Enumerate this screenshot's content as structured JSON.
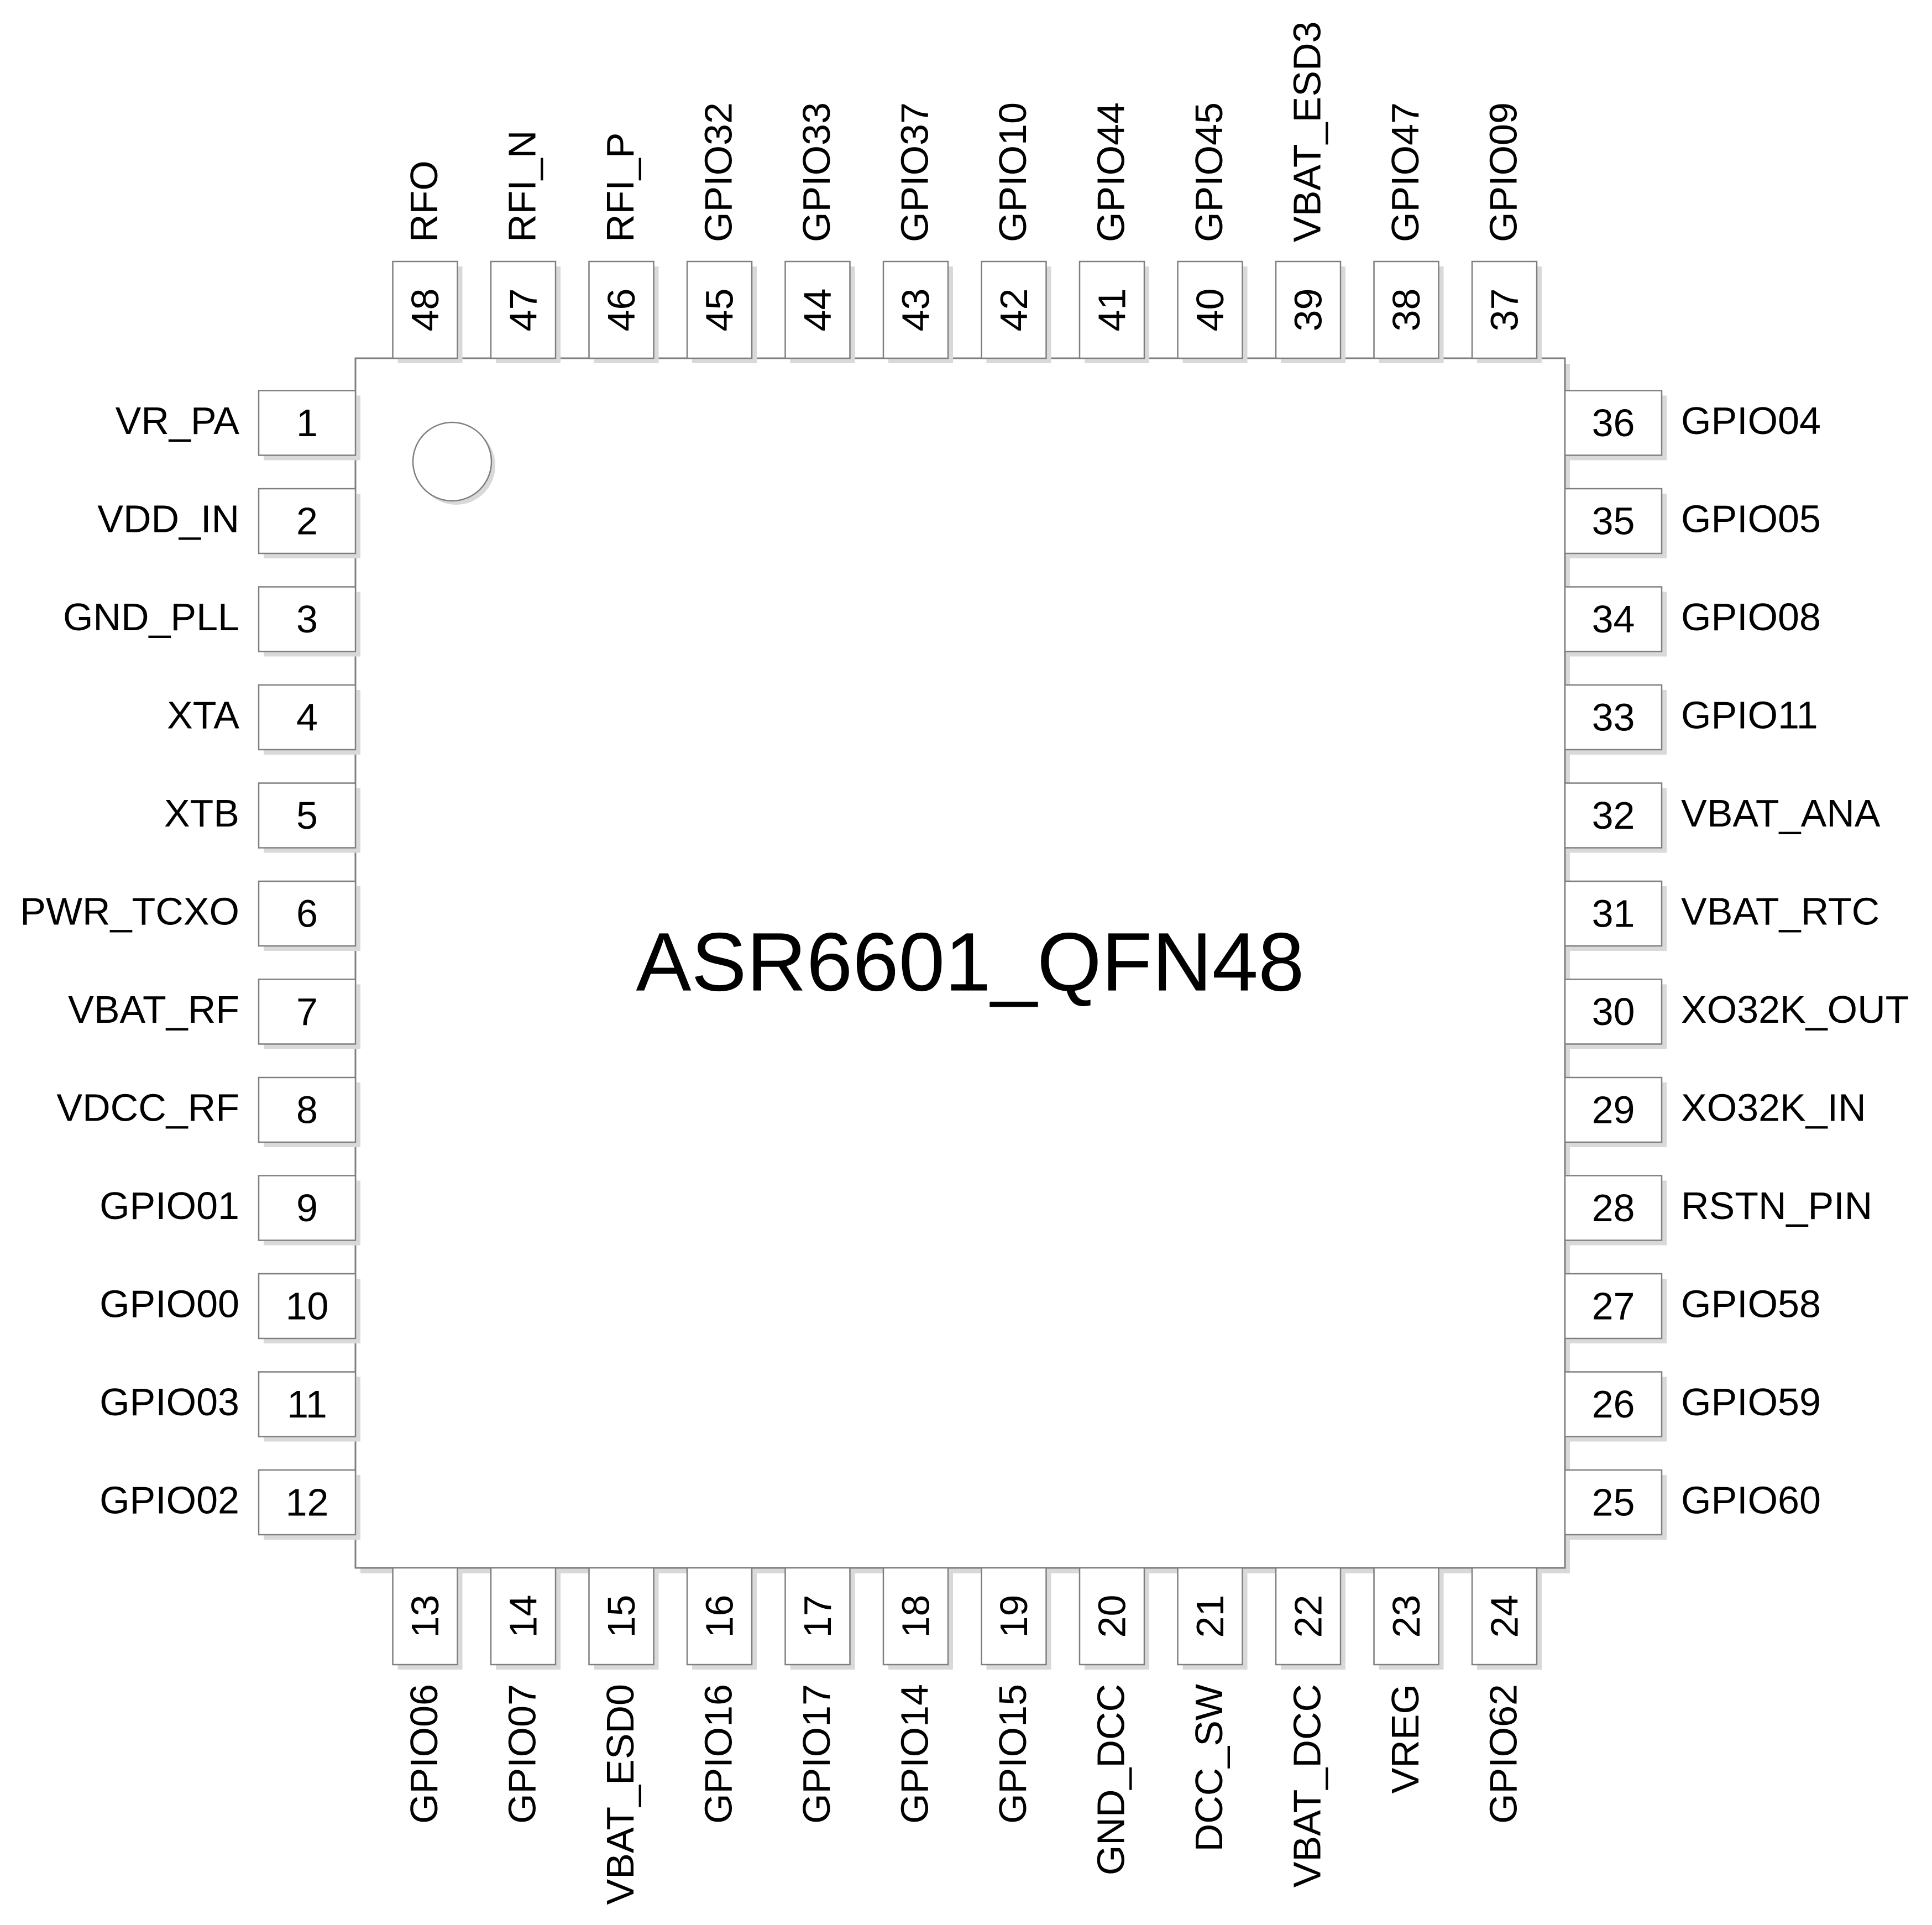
{
  "chip": {
    "title": "ASR6601_QFN48"
  },
  "pins": {
    "left": [
      {
        "num": "1",
        "name": "VR_PA"
      },
      {
        "num": "2",
        "name": "VDD_IN"
      },
      {
        "num": "3",
        "name": "GND_PLL"
      },
      {
        "num": "4",
        "name": "XTA"
      },
      {
        "num": "5",
        "name": "XTB"
      },
      {
        "num": "6",
        "name": "PWR_TCXO"
      },
      {
        "num": "7",
        "name": "VBAT_RF"
      },
      {
        "num": "8",
        "name": "VDCC_RF"
      },
      {
        "num": "9",
        "name": "GPIO01"
      },
      {
        "num": "10",
        "name": "GPIO00"
      },
      {
        "num": "11",
        "name": "GPIO03"
      },
      {
        "num": "12",
        "name": "GPIO02"
      }
    ],
    "bottom": [
      {
        "num": "13",
        "name": "GPIO06"
      },
      {
        "num": "14",
        "name": "GPIO07"
      },
      {
        "num": "15",
        "name": "VBAT_ESD0"
      },
      {
        "num": "16",
        "name": "GPIO16"
      },
      {
        "num": "17",
        "name": "GPIO17"
      },
      {
        "num": "18",
        "name": "GPIO14"
      },
      {
        "num": "19",
        "name": "GPIO15"
      },
      {
        "num": "20",
        "name": "GND_DCC"
      },
      {
        "num": "21",
        "name": "DCC_SW"
      },
      {
        "num": "22",
        "name": "VBAT_DCC"
      },
      {
        "num": "23",
        "name": "VREG"
      },
      {
        "num": "24",
        "name": "GPIO62"
      }
    ],
    "right": [
      {
        "num": "36",
        "name": "GPIO04"
      },
      {
        "num": "35",
        "name": "GPIO05"
      },
      {
        "num": "34",
        "name": "GPIO08"
      },
      {
        "num": "33",
        "name": "GPIO11"
      },
      {
        "num": "32",
        "name": "VBAT_ANA"
      },
      {
        "num": "31",
        "name": "VBAT_RTC"
      },
      {
        "num": "30",
        "name": "XO32K_OUT"
      },
      {
        "num": "29",
        "name": "XO32K_IN"
      },
      {
        "num": "28",
        "name": "RSTN_PIN"
      },
      {
        "num": "27",
        "name": "GPIO58"
      },
      {
        "num": "26",
        "name": "GPIO59"
      },
      {
        "num": "25",
        "name": "GPIO60"
      }
    ],
    "top": [
      {
        "num": "48",
        "name": "RFO"
      },
      {
        "num": "47",
        "name": "RFI_N"
      },
      {
        "num": "46",
        "name": "RFI_P"
      },
      {
        "num": "45",
        "name": "GPIO32"
      },
      {
        "num": "44",
        "name": "GPIO33"
      },
      {
        "num": "43",
        "name": "GPIO37"
      },
      {
        "num": "42",
        "name": "GPIO10"
      },
      {
        "num": "41",
        "name": "GPIO44"
      },
      {
        "num": "40",
        "name": "GPIO45"
      },
      {
        "num": "39",
        "name": "VBAT_ESD3"
      },
      {
        "num": "38",
        "name": "GPIO47"
      },
      {
        "num": "37",
        "name": "GPIO09"
      }
    ]
  }
}
